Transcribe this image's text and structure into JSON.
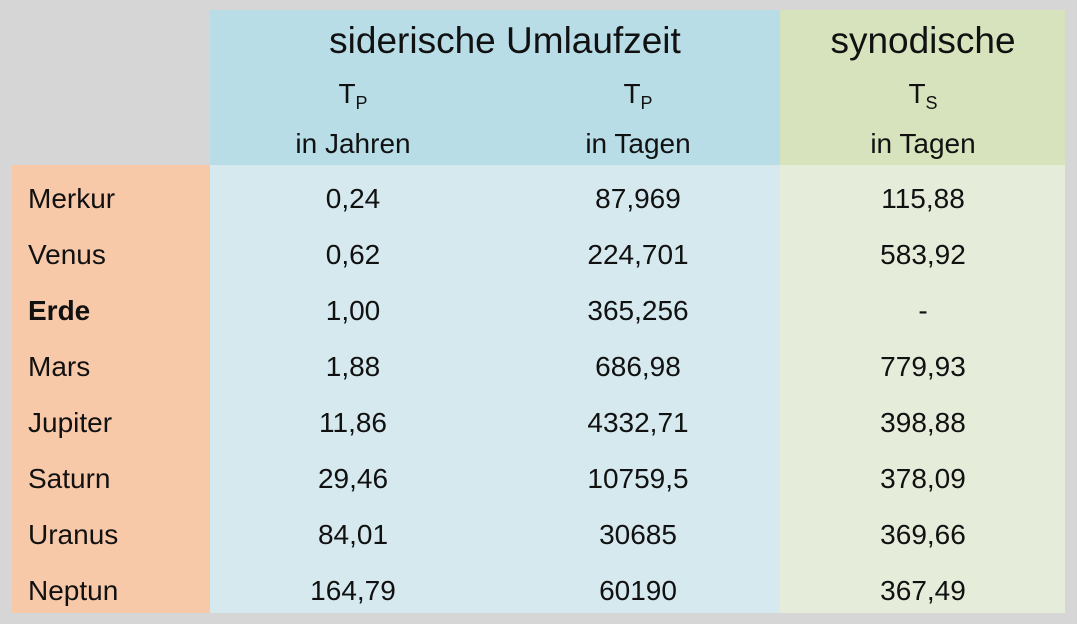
{
  "header": {
    "group_titles": [
      "siderische Umlaufzeit",
      "synodische"
    ],
    "columns": [
      {
        "symbol": "T",
        "subscript": "P",
        "unit": "in Jahren"
      },
      {
        "symbol": "T",
        "subscript": "P",
        "unit": "in Tagen"
      },
      {
        "symbol": "T",
        "subscript": "S",
        "unit": "in Tagen"
      }
    ]
  },
  "table": {
    "rows": [
      {
        "name": "Merkur",
        "values": [
          "0,24",
          "87,969",
          "115,88"
        ]
      },
      {
        "name": "Venus",
        "values": [
          "0,62",
          "224,701",
          "583,92"
        ]
      },
      {
        "name": "Erde",
        "bold": true,
        "values": [
          "1,00",
          "365,256",
          "-"
        ]
      },
      {
        "name": "Mars",
        "values": [
          "1,88",
          "686,98",
          "779,93"
        ]
      },
      {
        "name": "Jupiter",
        "values": [
          "11,86",
          "4332,71",
          "398,88"
        ]
      },
      {
        "name": "Saturn",
        "values": [
          "29,46",
          "10759,5",
          "378,09"
        ]
      },
      {
        "name": "Uranus",
        "values": [
          "84,01",
          "30685",
          "369,66"
        ]
      },
      {
        "name": "Neptun",
        "values": [
          "164,79",
          "60190",
          "367,49"
        ]
      }
    ]
  }
}
